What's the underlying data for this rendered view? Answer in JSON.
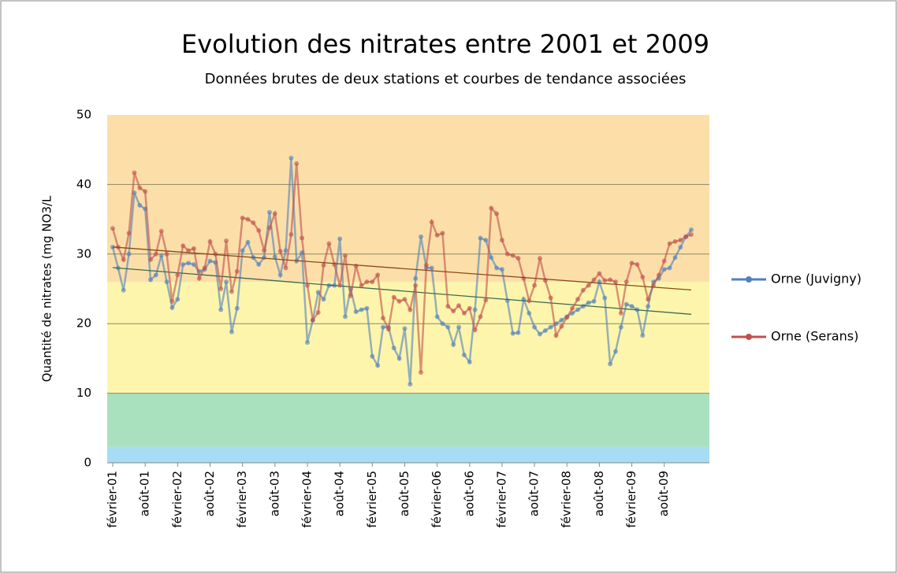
{
  "chart_data": {
    "type": "line",
    "title": "Evolution des nitrates entre 2001 et 2009",
    "subtitle": "Données brutes de deux stations et courbes de tendance associées",
    "y_label": "Quantité de nitrates (mg NO3/L",
    "categories": [
      "février-01",
      null,
      null,
      null,
      null,
      null,
      "août-01",
      null,
      null,
      null,
      null,
      null,
      "février-02",
      null,
      null,
      null,
      null,
      null,
      "août-02",
      null,
      null,
      null,
      null,
      null,
      "février-03",
      null,
      null,
      null,
      null,
      null,
      "août-03",
      null,
      null,
      null,
      null,
      null,
      "février-04",
      null,
      null,
      null,
      null,
      null,
      "août-04",
      null,
      null,
      null,
      null,
      null,
      "février-05",
      null,
      null,
      null,
      null,
      null,
      "août-05",
      null,
      null,
      null,
      null,
      null,
      "février-06",
      null,
      null,
      null,
      null,
      null,
      "août-06",
      null,
      null,
      null,
      null,
      null,
      "février-07",
      null,
      null,
      null,
      null,
      null,
      "août-07",
      null,
      null,
      null,
      null,
      null,
      "février-08",
      null,
      null,
      null,
      null,
      null,
      "août-08",
      null,
      null,
      null,
      null,
      null,
      "février-09",
      null,
      null,
      null,
      null,
      null,
      "août-09",
      null,
      null,
      null,
      null,
      null
    ],
    "series": [
      {
        "name": "Orne (Juvigny)",
        "color": "#4f81bd",
        "trend_color": "#3d6b4f",
        "values": [
          31,
          28,
          24.8,
          30,
          38.8,
          37,
          36.5,
          26.3,
          27,
          29.8,
          26,
          22.3,
          23.5,
          28.5,
          28.7,
          28.5,
          27.5,
          27.8,
          29,
          28.8,
          22,
          26,
          18.8,
          22.2,
          30.5,
          31.7,
          29.5,
          28.5,
          29.5,
          36,
          29.6,
          27,
          30.5,
          43.8,
          29,
          30.2,
          17.3,
          20.5,
          24.5,
          23.5,
          25.5,
          25.5,
          32.2,
          21,
          25,
          21.7,
          22,
          22.2,
          15.3,
          14,
          19.5,
          19.5,
          16.5,
          15,
          19.3,
          11.3,
          26.5,
          32.5,
          28,
          28,
          21,
          20,
          19.5,
          17,
          19.5,
          15.5,
          14.5,
          22,
          32.3,
          32,
          29.5,
          28,
          27.8,
          23.3,
          18.6,
          18.7,
          23.5,
          21.5,
          19.5,
          18.5,
          19,
          19.5,
          20,
          20.5,
          21,
          21.5,
          22,
          22.5,
          23,
          23.2,
          26,
          23.7,
          14.2,
          16,
          19.5,
          22.8,
          22.5,
          22,
          18.3,
          22.5,
          26,
          26.5,
          27.8,
          28,
          29.5,
          31,
          32.5,
          33.5
        ]
      },
      {
        "name": "Orne (Serans)",
        "color": "#c0504d",
        "trend_color": "#8a4a1a",
        "values": [
          33.7,
          31,
          29.2,
          33,
          41.7,
          39.5,
          39,
          29.2,
          30,
          33.3,
          30,
          23.2,
          27,
          31.2,
          30.5,
          30.8,
          26.5,
          28,
          31.8,
          30,
          25,
          31.9,
          24.6,
          27.5,
          35.2,
          35,
          34.5,
          33.4,
          30.5,
          33.8,
          35.8,
          30.4,
          28,
          32.8,
          43,
          32.3,
          25.5,
          20.5,
          21.6,
          28.4,
          31.5,
          28.5,
          25.5,
          29.8,
          24,
          28.3,
          25.5,
          26,
          26,
          27,
          20.8,
          19.2,
          23.8,
          23.2,
          23.5,
          22,
          25.5,
          13,
          28.4,
          34.6,
          32.7,
          33,
          22.5,
          21.8,
          22.6,
          21.5,
          22.2,
          19.1,
          21,
          23.4,
          36.6,
          35.8,
          32,
          30,
          29.8,
          29.4,
          26.5,
          23.3,
          25.5,
          29.4,
          26.2,
          23.7,
          18.3,
          19.6,
          20.9,
          22.2,
          23.5,
          24.8,
          25.5,
          26.3,
          27.2,
          26.2,
          26.3,
          26,
          21.5,
          26,
          28.7,
          28.5,
          26.7,
          23.5,
          25.5,
          27,
          29,
          31.5,
          31.8,
          32,
          32.5,
          32.8
        ]
      }
    ],
    "line_opacity": 0.6,
    "trendline": true,
    "bands": [
      {
        "from": 0,
        "to": 2.3,
        "color": "#a6dcf4"
      },
      {
        "from": 2.3,
        "to": 10,
        "color": "#a9e1bf"
      },
      {
        "from": 10,
        "to": 26,
        "color": "#fdf5ac"
      },
      {
        "from": 26,
        "to": 50,
        "color": "#fcdfa8"
      }
    ],
    "ylim": [
      0,
      50
    ],
    "yticks": [
      0,
      10,
      20,
      30,
      40,
      50
    ],
    "grid": true,
    "legend": "right"
  }
}
